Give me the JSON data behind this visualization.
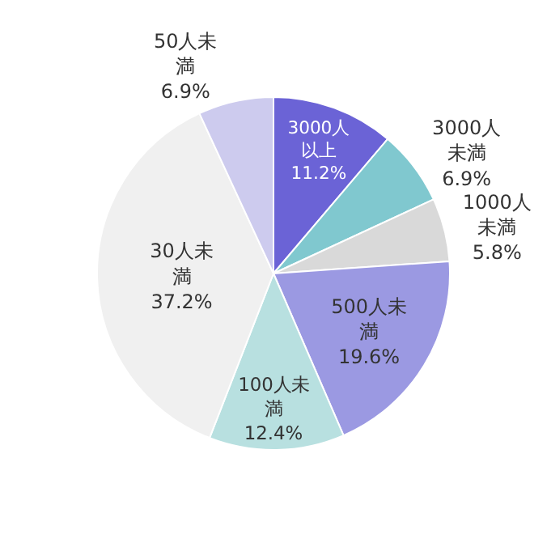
{
  "chart_data": {
    "type": "pie",
    "categories": [
      "3000人以上",
      "3000人未満",
      "1000人未満",
      "500人未満",
      "100人未満",
      "30人未満",
      "50人未満"
    ],
    "values": [
      11.2,
      6.9,
      5.8,
      19.6,
      12.4,
      37.2,
      6.9
    ],
    "value_labels": [
      "11.2%",
      "6.9%",
      "5.8%",
      "19.6%",
      "12.4%",
      "37.2%",
      "6.9%"
    ],
    "colors": [
      "#6b63d6",
      "#80c8cf",
      "#d9d9d9",
      "#9b99e2",
      "#b8e0e0",
      "#f0f0f0",
      "#cdcbee"
    ],
    "legend": false
  }
}
